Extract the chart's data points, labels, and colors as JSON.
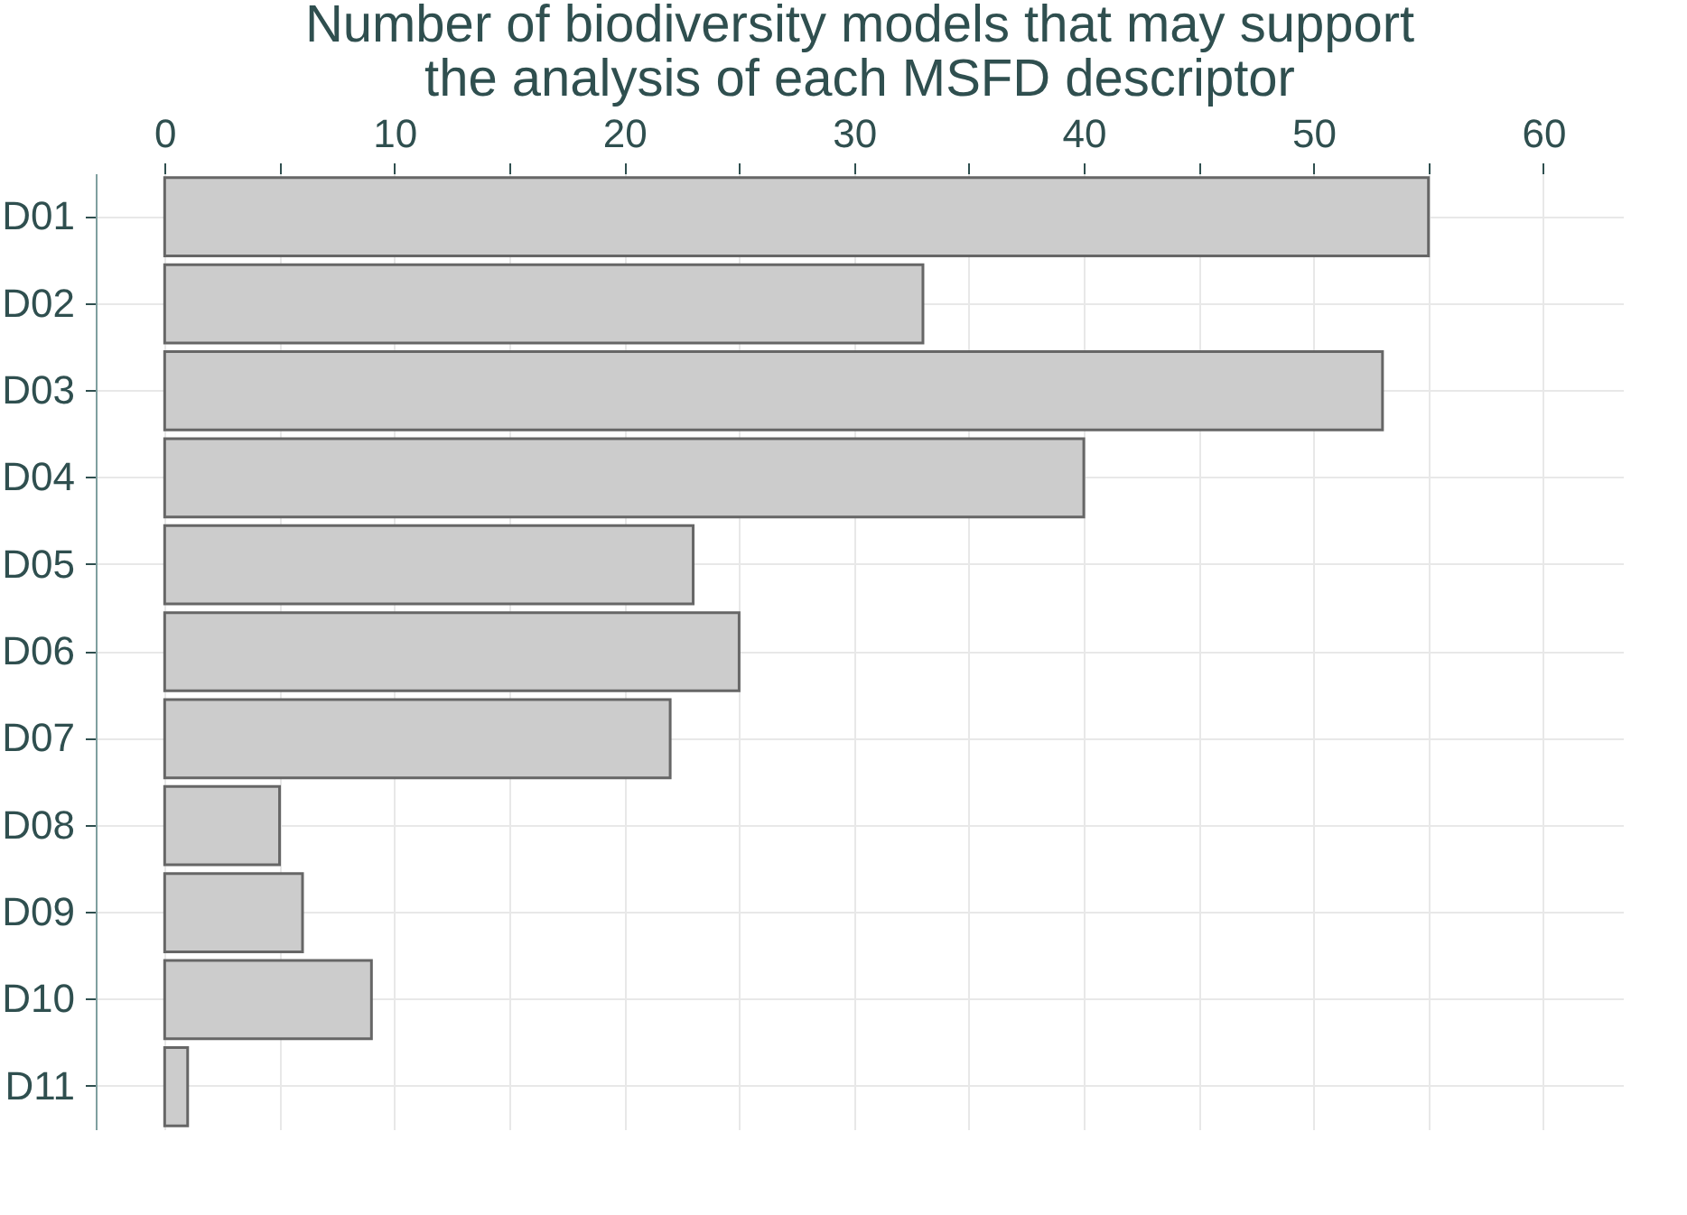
{
  "chart_data": {
    "type": "bar",
    "orientation": "horizontal",
    "title": [
      "Number of biodiversity models that may support",
      "the analysis of each MSFD descriptor"
    ],
    "categories": [
      "D01",
      "D02",
      "D03",
      "D04",
      "D05",
      "D06",
      "D07",
      "D08",
      "D09",
      "D10",
      "D11"
    ],
    "values": [
      55,
      33,
      53,
      40,
      23,
      25,
      22,
      5,
      6,
      9,
      1
    ],
    "color": "#cccccc",
    "xlim": [
      -3,
      63.5
    ],
    "xticks": [
      0,
      {
        "value": 5,
        "label": null
      },
      10,
      {
        "value": 15,
        "label": null
      },
      20,
      {
        "value": 25,
        "label": null
      },
      30,
      {
        "value": 35,
        "label": null
      },
      40,
      {
        "value": 45,
        "label": null
      },
      50,
      {
        "value": 55,
        "label": null
      },
      60
    ],
    "grid": true
  }
}
